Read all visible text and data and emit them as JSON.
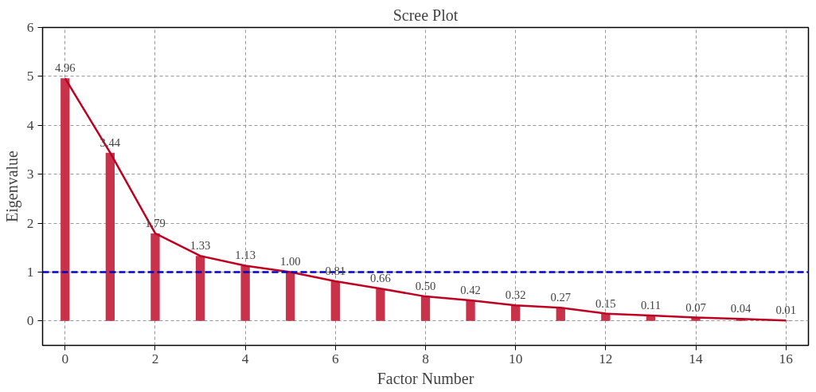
{
  "chart_data": {
    "type": "bar",
    "title": "Scree Plot",
    "xlabel": "Factor Number",
    "ylabel": "Eigenvalue",
    "x": [
      0,
      1,
      2,
      3,
      4,
      5,
      6,
      7,
      8,
      9,
      10,
      11,
      12,
      13,
      14,
      15,
      16
    ],
    "series": [
      {
        "color": "#c8324a",
        "values": [
          4.96,
          3.44,
          1.79,
          1.33,
          1.13,
          1.0,
          0.81,
          0.66,
          0.5,
          0.42,
          0.32,
          0.27,
          0.15,
          0.11,
          0.07,
          0.04,
          0.01
        ],
        "value_labels": [
          "4.96",
          "3.44",
          "1.79",
          "1.33",
          "1.13",
          "1.00",
          "0.81",
          "0.66",
          "0.50",
          "0.42",
          "0.32",
          "0.27",
          "0.15",
          "0.11",
          "0.07",
          "0.04",
          "0.01"
        ]
      },
      {
        "type": "line",
        "color": "#c00020",
        "values": [
          4.96,
          3.44,
          1.79,
          1.33,
          1.13,
          1.0,
          0.81,
          0.66,
          0.5,
          0.42,
          0.32,
          0.27,
          0.15,
          0.11,
          0.07,
          0.04,
          0.01
        ]
      }
    ],
    "xlim": [
      -0.5,
      16.5
    ],
    "ylim": [
      -0.5,
      6
    ],
    "xticks": [
      0,
      2,
      4,
      6,
      8,
      10,
      12,
      14,
      16
    ],
    "yticks": [
      0,
      1,
      2,
      3,
      4,
      5,
      6
    ],
    "grid": true,
    "ref_lines": [
      {
        "axis": "y",
        "value": 1,
        "color": "#0000cc",
        "line_style": "dashed"
      }
    ]
  }
}
